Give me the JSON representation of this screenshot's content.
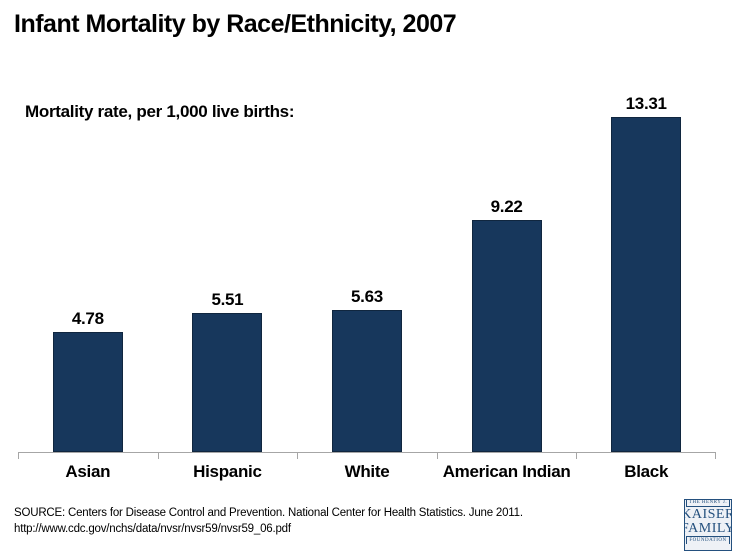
{
  "title": "Infant Mortality by Race/Ethnicity, 2007",
  "subtitle": "Mortality rate, per 1,000 live births:",
  "chart_data": {
    "type": "bar",
    "categories": [
      "Asian",
      "Hispanic",
      "White",
      "American Indian",
      "Black"
    ],
    "values": [
      4.78,
      5.51,
      5.63,
      9.22,
      13.31
    ],
    "value_labels": [
      "4.78",
      "5.51",
      "5.63",
      "9.22",
      "13.31"
    ],
    "title": "Infant Mortality by Race/Ethnicity, 2007",
    "xlabel": "",
    "ylabel": "Mortality rate, per 1,000 live births",
    "ylim": [
      0,
      14
    ],
    "grid": false,
    "legend": "none",
    "bar_color": "#17375C",
    "bar_border_color": "#10263F",
    "axis_color": "#A6A6A6"
  },
  "source": {
    "line1": "SOURCE: Centers for Disease Control and Prevention. National Center for Health Statistics. June 2011.",
    "line2": "http://www.cdc.gov/nchs/data/nvsr/nvsr59/nvsr59_06.pdf"
  },
  "logo": {
    "top": "THE HENRY J.",
    "name_line1": "KAISER",
    "name_line2": "FAMILY",
    "bottom": "FOUNDATION",
    "color": "#24507E"
  }
}
